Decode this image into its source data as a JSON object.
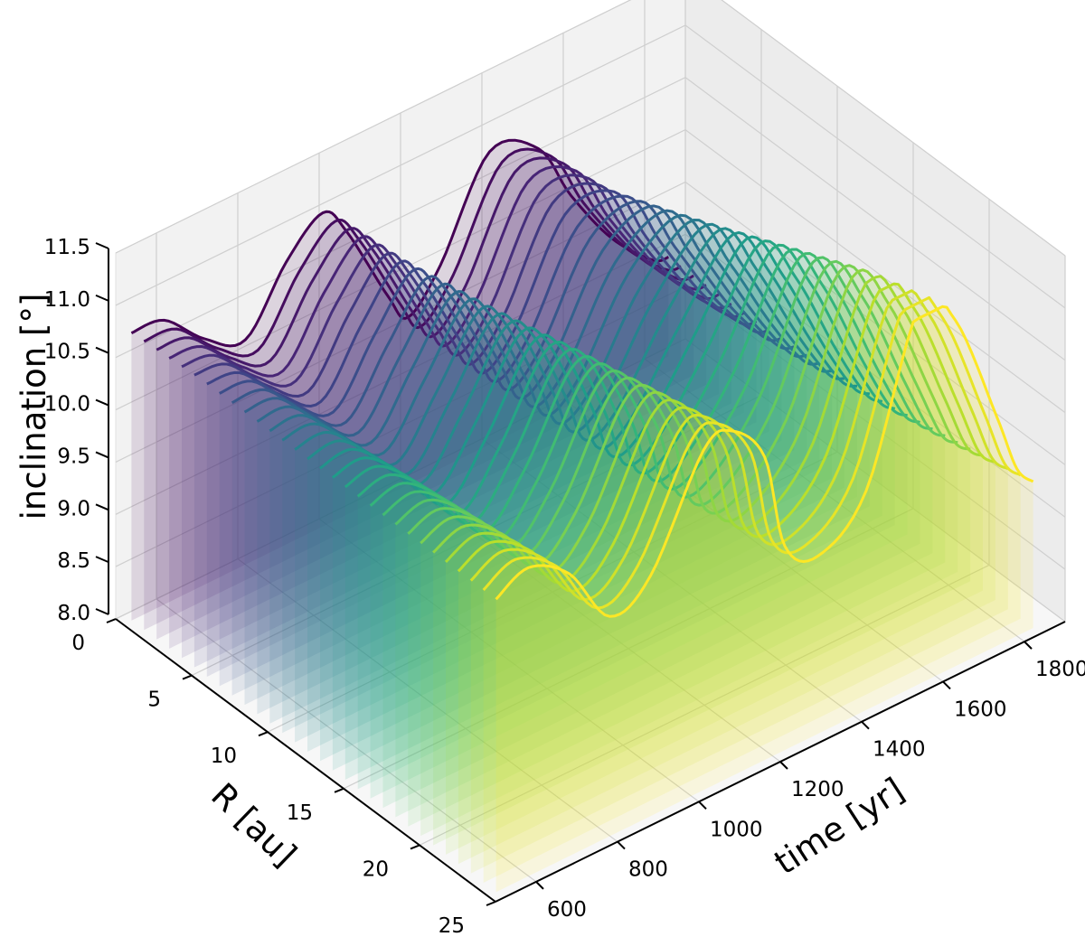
{
  "chart_data": {
    "type": "surface-3d-waterfall",
    "title": "",
    "xlabel": "time [yr]",
    "ylabel": "R [au]",
    "zlabel": "inclination [°]",
    "x_ticks": [
      "600",
      "800",
      "1000",
      "1200",
      "1400",
      "1600",
      "1800"
    ],
    "y_ticks": [
      "0",
      "5",
      "10",
      "15",
      "20",
      "25"
    ],
    "z_ticks": [
      "8.0",
      "8.5",
      "9.0",
      "9.5",
      "10.0",
      "10.5",
      "11.0",
      "11.5"
    ],
    "xlim": [
      500,
      1900
    ],
    "ylim": [
      0,
      25
    ],
    "zlim": [
      8.0,
      11.5
    ],
    "colormap": "viridis",
    "color_by": "R",
    "grid": true,
    "series_count": 30,
    "curves": [
      {
        "R": 0.5,
        "points": [
          [
            520,
            10.75
          ],
          [
            600,
            10.72
          ],
          [
            700,
            10.35
          ],
          [
            800,
            10.15
          ],
          [
            900,
            10.7
          ],
          [
            990,
            11.0
          ],
          [
            1050,
            10.7
          ],
          [
            1150,
            9.9
          ],
          [
            1200,
            9.6
          ],
          [
            1280,
            9.95
          ],
          [
            1400,
            10.8
          ],
          [
            1520,
            10.6
          ],
          [
            1600,
            10.0
          ],
          [
            1700,
            9.4
          ],
          [
            1800,
            9.0
          ],
          [
            1840,
            8.95
          ]
        ]
      },
      {
        "R": 5.0,
        "points": [
          [
            520,
            10.8
          ],
          [
            600,
            10.75
          ],
          [
            700,
            10.35
          ],
          [
            800,
            10.1
          ],
          [
            900,
            10.65
          ],
          [
            990,
            11.05
          ],
          [
            1050,
            10.75
          ],
          [
            1150,
            9.95
          ],
          [
            1200,
            9.6
          ],
          [
            1280,
            9.9
          ],
          [
            1400,
            10.75
          ],
          [
            1520,
            10.7
          ],
          [
            1600,
            10.1
          ],
          [
            1700,
            9.45
          ],
          [
            1800,
            9.0
          ],
          [
            1840,
            8.95
          ]
        ]
      },
      {
        "R": 10.0,
        "points": [
          [
            520,
            10.8
          ],
          [
            600,
            10.8
          ],
          [
            700,
            10.4
          ],
          [
            800,
            10.05
          ],
          [
            900,
            10.55
          ],
          [
            1000,
            11.1
          ],
          [
            1060,
            10.9
          ],
          [
            1150,
            10.1
          ],
          [
            1200,
            9.65
          ],
          [
            1280,
            9.85
          ],
          [
            1400,
            10.6
          ],
          [
            1530,
            10.95
          ],
          [
            1620,
            10.35
          ],
          [
            1720,
            9.6
          ],
          [
            1800,
            9.1
          ],
          [
            1840,
            9.0
          ]
        ]
      },
      {
        "R": 15.0,
        "points": [
          [
            520,
            10.8
          ],
          [
            600,
            10.85
          ],
          [
            700,
            10.5
          ],
          [
            800,
            10.0
          ],
          [
            900,
            10.45
          ],
          [
            1010,
            11.15
          ],
          [
            1080,
            11.05
          ],
          [
            1160,
            10.3
          ],
          [
            1210,
            9.7
          ],
          [
            1290,
            9.8
          ],
          [
            1410,
            10.4
          ],
          [
            1540,
            11.2
          ],
          [
            1630,
            10.7
          ],
          [
            1730,
            9.8
          ],
          [
            1800,
            9.25
          ],
          [
            1840,
            9.1
          ]
        ]
      },
      {
        "R": 20.0,
        "points": [
          [
            520,
            10.8
          ],
          [
            600,
            10.9
          ],
          [
            700,
            10.6
          ],
          [
            800,
            10.05
          ],
          [
            900,
            10.35
          ],
          [
            1020,
            11.2
          ],
          [
            1090,
            11.2
          ],
          [
            1170,
            10.6
          ],
          [
            1220,
            9.8
          ],
          [
            1300,
            9.75
          ],
          [
            1420,
            10.25
          ],
          [
            1550,
            11.45
          ],
          [
            1640,
            11.0
          ],
          [
            1740,
            10.0
          ],
          [
            1800,
            9.4
          ],
          [
            1840,
            9.25
          ]
        ]
      },
      {
        "R": 24.5,
        "points": [
          [
            520,
            10.8
          ],
          [
            600,
            10.95
          ],
          [
            700,
            10.7
          ],
          [
            800,
            10.1
          ],
          [
            900,
            10.3
          ],
          [
            1030,
            11.25
          ],
          [
            1100,
            11.3
          ],
          [
            1180,
            10.9
          ],
          [
            1230,
            9.95
          ],
          [
            1310,
            9.7
          ],
          [
            1430,
            10.1
          ],
          [
            1560,
            11.6
          ],
          [
            1650,
            11.3
          ],
          [
            1750,
            10.2
          ],
          [
            1800,
            9.6
          ],
          [
            1840,
            9.4
          ]
        ]
      }
    ]
  }
}
